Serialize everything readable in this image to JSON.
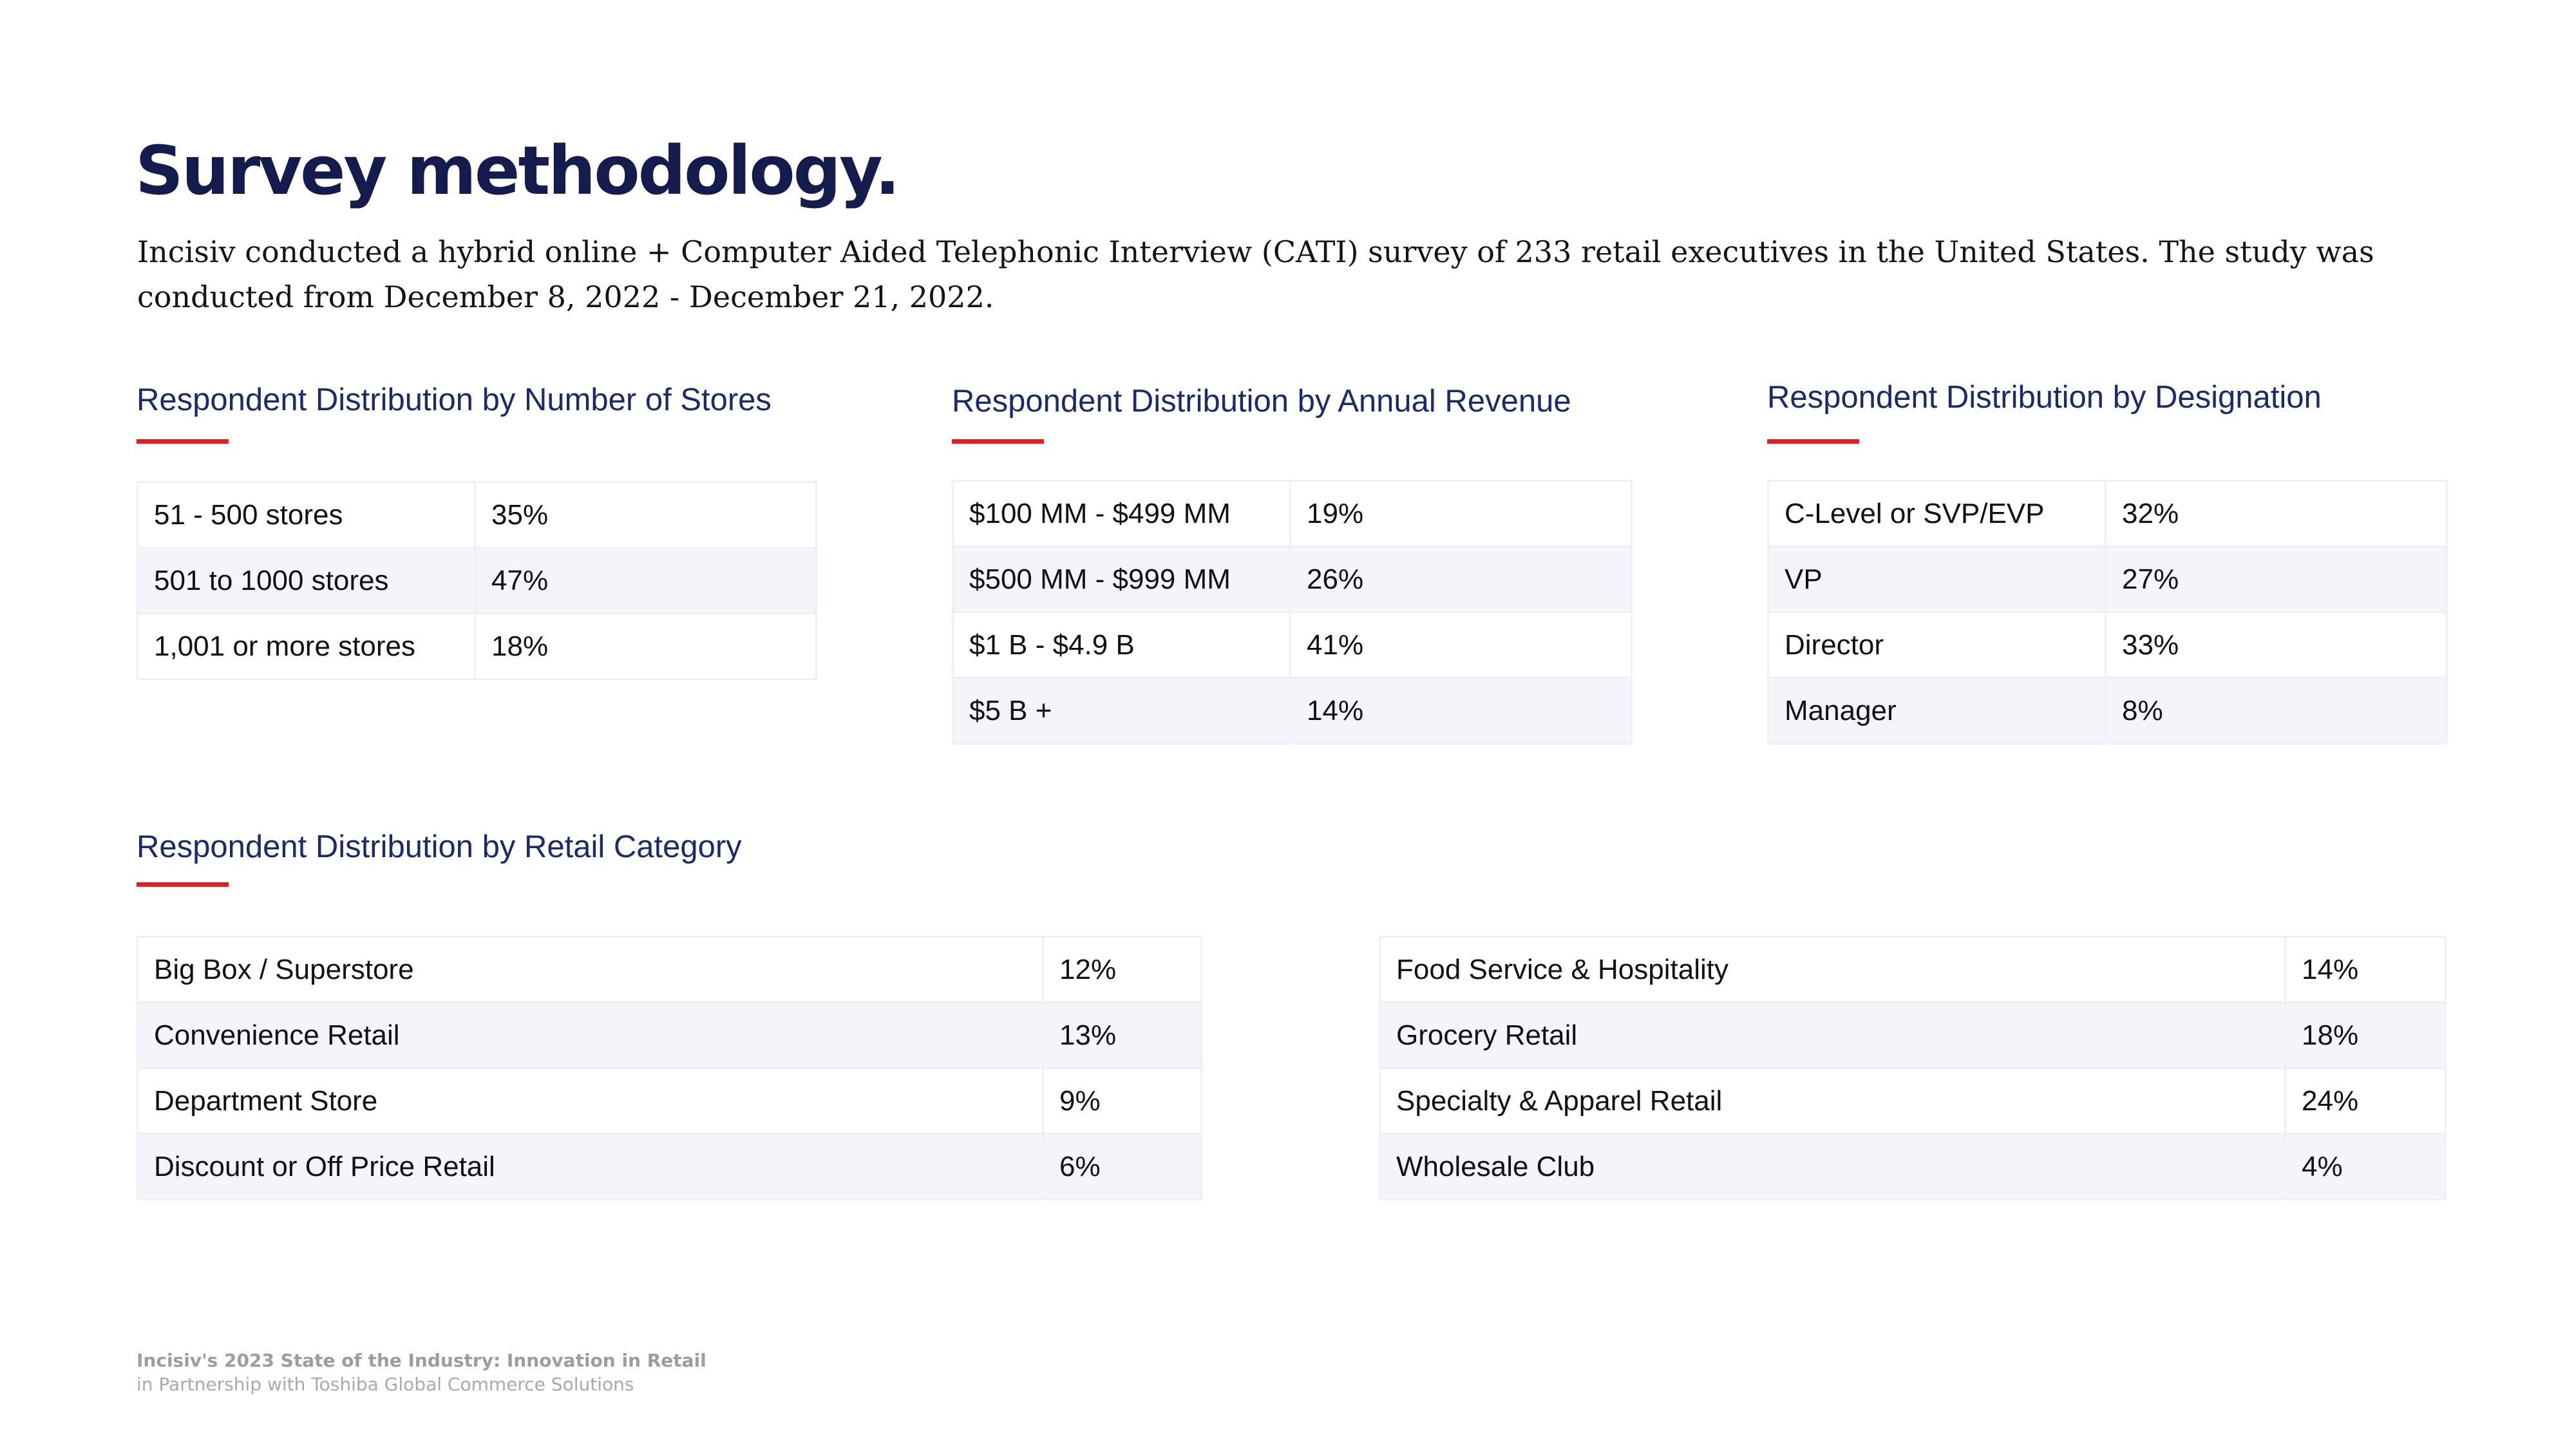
{
  "title": "Survey methodology.",
  "intro": "Incisiv conducted a hybrid online + Computer Aided Telephonic Interview (CATI) survey of 233 retail executives in the United States. The study was conducted from December 8, 2022 - December 21, 2022.",
  "accent_color": "#e01e25",
  "heading_color": "#1b2a6b",
  "stores": {
    "heading": "Respondent Distribution by Number of Stores",
    "rows": [
      {
        "label": "51 - 500 stores",
        "value": "35%"
      },
      {
        "label": "501 to 1000 stores",
        "value": "47%"
      },
      {
        "label": "1,001 or more stores",
        "value": "18%"
      }
    ]
  },
  "revenue": {
    "heading": "Respondent Distribution by Annual Revenue",
    "rows": [
      {
        "label": "$100 MM - $499 MM",
        "value": "19%"
      },
      {
        "label": "$500 MM - $999 MM",
        "value": "26%"
      },
      {
        "label": "$1 B - $4.9 B",
        "value": "41%"
      },
      {
        "label": "$5 B +",
        "value": "14%"
      }
    ]
  },
  "designation": {
    "heading": "Respondent Distribution by Designation",
    "rows": [
      {
        "label": "C-Level or SVP/EVP",
        "value": "32%"
      },
      {
        "label": "VP",
        "value": "27%"
      },
      {
        "label": "Director",
        "value": "33%"
      },
      {
        "label": "Manager",
        "value": "8%"
      }
    ]
  },
  "retail_category": {
    "heading": "Respondent Distribution by Retail Category",
    "left_rows": [
      {
        "label": "Big Box / Superstore",
        "value": "12%"
      },
      {
        "label": "Convenience Retail",
        "value": "13%"
      },
      {
        "label": "Department Store",
        "value": "9%"
      },
      {
        "label": "Discount or Off Price Retail",
        "value": "6%"
      }
    ],
    "right_rows": [
      {
        "label": "Food Service & Hospitality",
        "value": "14%"
      },
      {
        "label": "Grocery Retail",
        "value": "18%"
      },
      {
        "label": "Specialty & Apparel Retail",
        "value": "24%"
      },
      {
        "label": "Wholesale Club",
        "value": "4%"
      }
    ]
  },
  "footer": {
    "line1": "Incisiv's 2023 State of the Industry: Innovation in Retail",
    "line2": "in Partnership with Toshiba Global Commerce Solutions"
  }
}
